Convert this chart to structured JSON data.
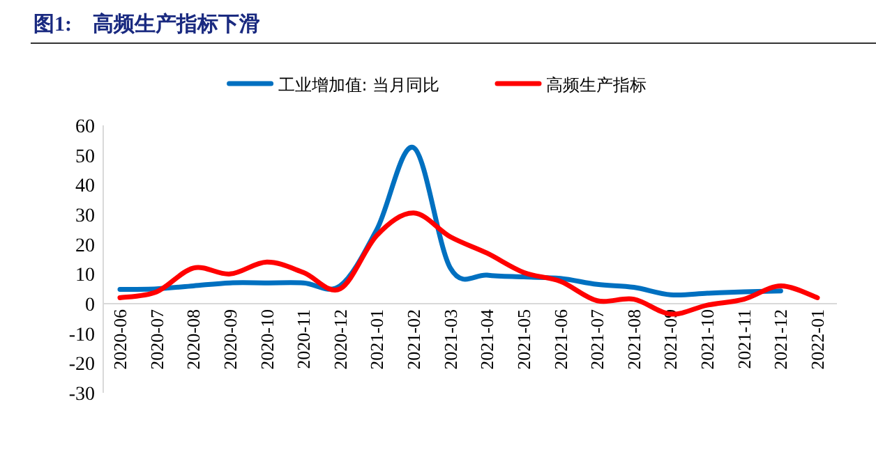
{
  "chart_data": {
    "type": "line",
    "title": "图1:　高频生产指标下滑",
    "categories": [
      "2020-06",
      "2020-07",
      "2020-08",
      "2020-09",
      "2020-10",
      "2020-11",
      "2020-12",
      "2021-01",
      "2021-02",
      "2021-03",
      "2021-04",
      "2021-05",
      "2021-06",
      "2021-07",
      "2021-08",
      "2021-09",
      "2021-10",
      "2021-11",
      "2021-12",
      "2022-01"
    ],
    "series": [
      {
        "name": "工业增加值: 当月同比",
        "color": "#0070c0",
        "values": [
          4.8,
          5,
          6,
          7,
          7,
          7,
          6,
          25,
          52.5,
          12,
          9.6,
          9,
          8.5,
          6.5,
          5.5,
          3,
          3.5,
          4,
          4.3,
          null
        ]
      },
      {
        "name": "高频生产指标",
        "color": "#ff0000",
        "values": [
          2,
          4,
          12,
          10,
          14,
          10.5,
          5,
          23,
          30.5,
          22.5,
          17,
          10.5,
          7.5,
          1,
          1.5,
          -3.5,
          -0.5,
          1.5,
          6,
          2
        ]
      }
    ],
    "ylim": [
      -30,
      60
    ],
    "yticks": [
      -30,
      -20,
      -10,
      0,
      10,
      20,
      30,
      40,
      50,
      60
    ],
    "legend": "top",
    "line_style": "solid",
    "marker": "none"
  }
}
